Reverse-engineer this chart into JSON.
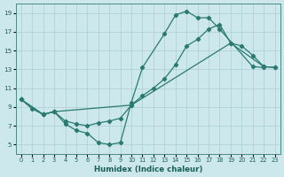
{
  "xlabel": "Humidex (Indice chaleur)",
  "bg_color": "#cce8ec",
  "grid_color": "#aacfd4",
  "line_color": "#2a7a70",
  "xlim": [
    -0.5,
    23.5
  ],
  "ylim": [
    4,
    20
  ],
  "yticks": [
    5,
    7,
    9,
    11,
    13,
    15,
    17,
    19
  ],
  "xticks": [
    0,
    1,
    2,
    3,
    4,
    5,
    6,
    7,
    8,
    9,
    10,
    11,
    12,
    13,
    14,
    15,
    16,
    17,
    18,
    19,
    20,
    21,
    22,
    23
  ],
  "curve1_x": [
    0,
    1,
    2,
    3,
    4,
    5,
    6,
    7,
    8,
    9,
    10,
    11,
    13,
    14,
    15,
    16,
    17,
    18,
    21,
    22
  ],
  "curve1_y": [
    9.8,
    8.8,
    8.2,
    8.5,
    7.2,
    6.5,
    6.2,
    5.2,
    5.0,
    5.2,
    9.5,
    13.2,
    16.8,
    18.8,
    19.2,
    18.5,
    18.5,
    17.3,
    13.3,
    13.2
  ],
  "curve2_x": [
    0,
    2,
    3,
    4,
    5,
    6,
    7,
    8,
    9,
    10,
    11,
    12,
    13,
    14,
    15,
    16,
    17,
    18,
    19,
    20,
    21,
    22,
    23
  ],
  "curve2_y": [
    9.8,
    8.2,
    8.5,
    7.5,
    7.2,
    7.0,
    7.3,
    7.5,
    7.8,
    9.2,
    10.2,
    11.0,
    12.0,
    13.5,
    15.5,
    16.2,
    17.3,
    17.8,
    15.8,
    15.5,
    14.5,
    13.3,
    13.2
  ],
  "curve3_x": [
    0,
    2,
    3,
    10,
    19,
    22,
    23
  ],
  "curve3_y": [
    9.8,
    8.2,
    8.5,
    9.2,
    15.8,
    13.3,
    13.2
  ]
}
